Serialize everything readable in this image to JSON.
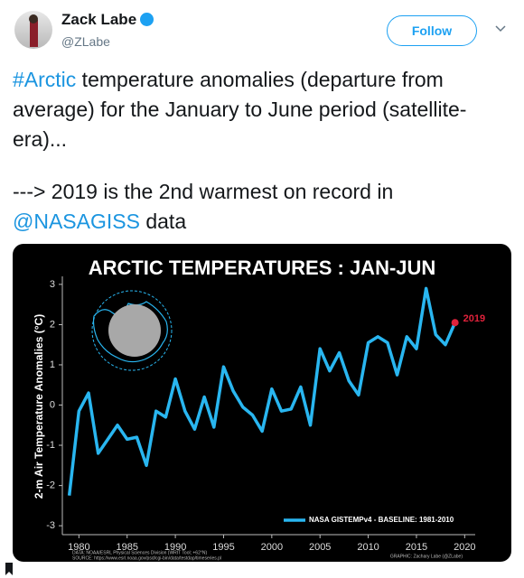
{
  "tweet": {
    "author_name": "Zack Labe",
    "handle": "@ZLabe",
    "follow_button": "Follow",
    "paragraphs": [
      [
        {
          "text": "#Arctic",
          "link": true
        },
        {
          "text": " temperature anomalies (departure from average) for the January to June period (satellite-era)..."
        }
      ],
      [
        {
          "text": "---> 2019 is the 2nd warmest on record in "
        },
        {
          "text": "@NASAGISS",
          "link": true
        },
        {
          "text": " data"
        }
      ]
    ]
  },
  "chart_data": {
    "type": "line",
    "title": "ARCTIC TEMPERATURES : JAN-JUN",
    "y_label": "2-m Air Temperature Anomalies (°C)",
    "x": [
      1979,
      1980,
      1981,
      1982,
      1983,
      1984,
      1985,
      1986,
      1987,
      1988,
      1989,
      1990,
      1991,
      1992,
      1993,
      1994,
      1995,
      1996,
      1997,
      1998,
      1999,
      2000,
      2001,
      2002,
      2003,
      2004,
      2005,
      2006,
      2007,
      2008,
      2009,
      2010,
      2011,
      2012,
      2013,
      2014,
      2015,
      2016,
      2017,
      2018,
      2019
    ],
    "series": [
      {
        "name": "NASA GISTEMPv4 - BASELINE: 1981-2010",
        "color": "#29b6f0",
        "values": [
          -2.25,
          -0.15,
          0.3,
          -1.2,
          -0.85,
          -0.5,
          -0.85,
          -0.8,
          -1.5,
          -0.15,
          -0.3,
          0.65,
          -0.15,
          -0.6,
          0.2,
          -0.55,
          0.95,
          0.35,
          -0.05,
          -0.25,
          -0.65,
          0.4,
          -0.15,
          -0.1,
          0.45,
          -0.5,
          1.4,
          0.85,
          1.3,
          0.6,
          0.25,
          1.55,
          1.7,
          1.55,
          0.75,
          1.7,
          1.4,
          2.9,
          1.75,
          1.5,
          2.05
        ]
      }
    ],
    "annotation": {
      "text": "2019",
      "color": "#e0223b"
    },
    "xlim": [
      1978,
      2021
    ],
    "xticks": [
      1980,
      1985,
      1990,
      1995,
      2000,
      2005,
      2010,
      2015,
      2020
    ],
    "ylim": [
      -3.2,
      3.2
    ],
    "yticks": [
      -3,
      -2,
      -1,
      0,
      1,
      2,
      3
    ],
    "footer": {
      "data": "DATA: NOAA/ESRL Physical Sciences Division (WRIT Tool; +62°N)",
      "source": "SOURCE: https://www.esrl.noaa.gov/psd/cgi-bin/data/testdap/timeseries.pl",
      "graphic": "GRAPHIC: Zachary Labe (@ZLabe)"
    }
  }
}
